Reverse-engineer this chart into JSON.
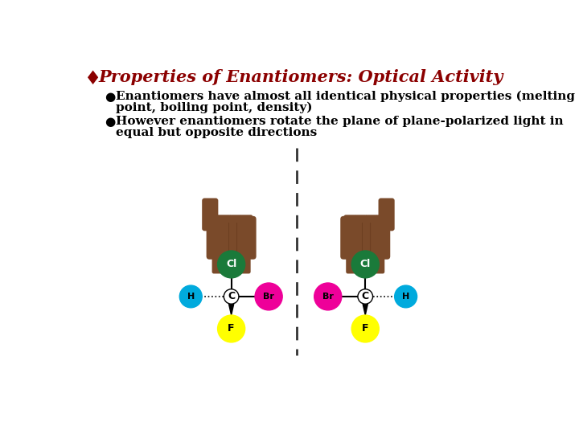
{
  "background_color": "#ffffff",
  "title_diamond": "♦",
  "title_diamond_color": "#8B0000",
  "title_text": "Properties of Enantiomers: Optical Activity",
  "title_color": "#8B0000",
  "title_fontsize": 15,
  "bullet1_line1": "Enantiomers have almost all identical physical properties (melting",
  "bullet1_line2": "point, boiling point, density)",
  "bullet2_line1": "However enantiomers rotate the plane of plane-polarized light in",
  "bullet2_line2": "equal but opposite directions",
  "bullet_color": "#000000",
  "bullet_fontsize": 11,
  "dashed_line_color": "#333333",
  "cl_color": "#1a7a3a",
  "h_color": "#00aadd",
  "br_color": "#ee0099",
  "f_color": "#ffff00",
  "skin_color": "#7a4a2a",
  "skin_dark": "#5a3015"
}
